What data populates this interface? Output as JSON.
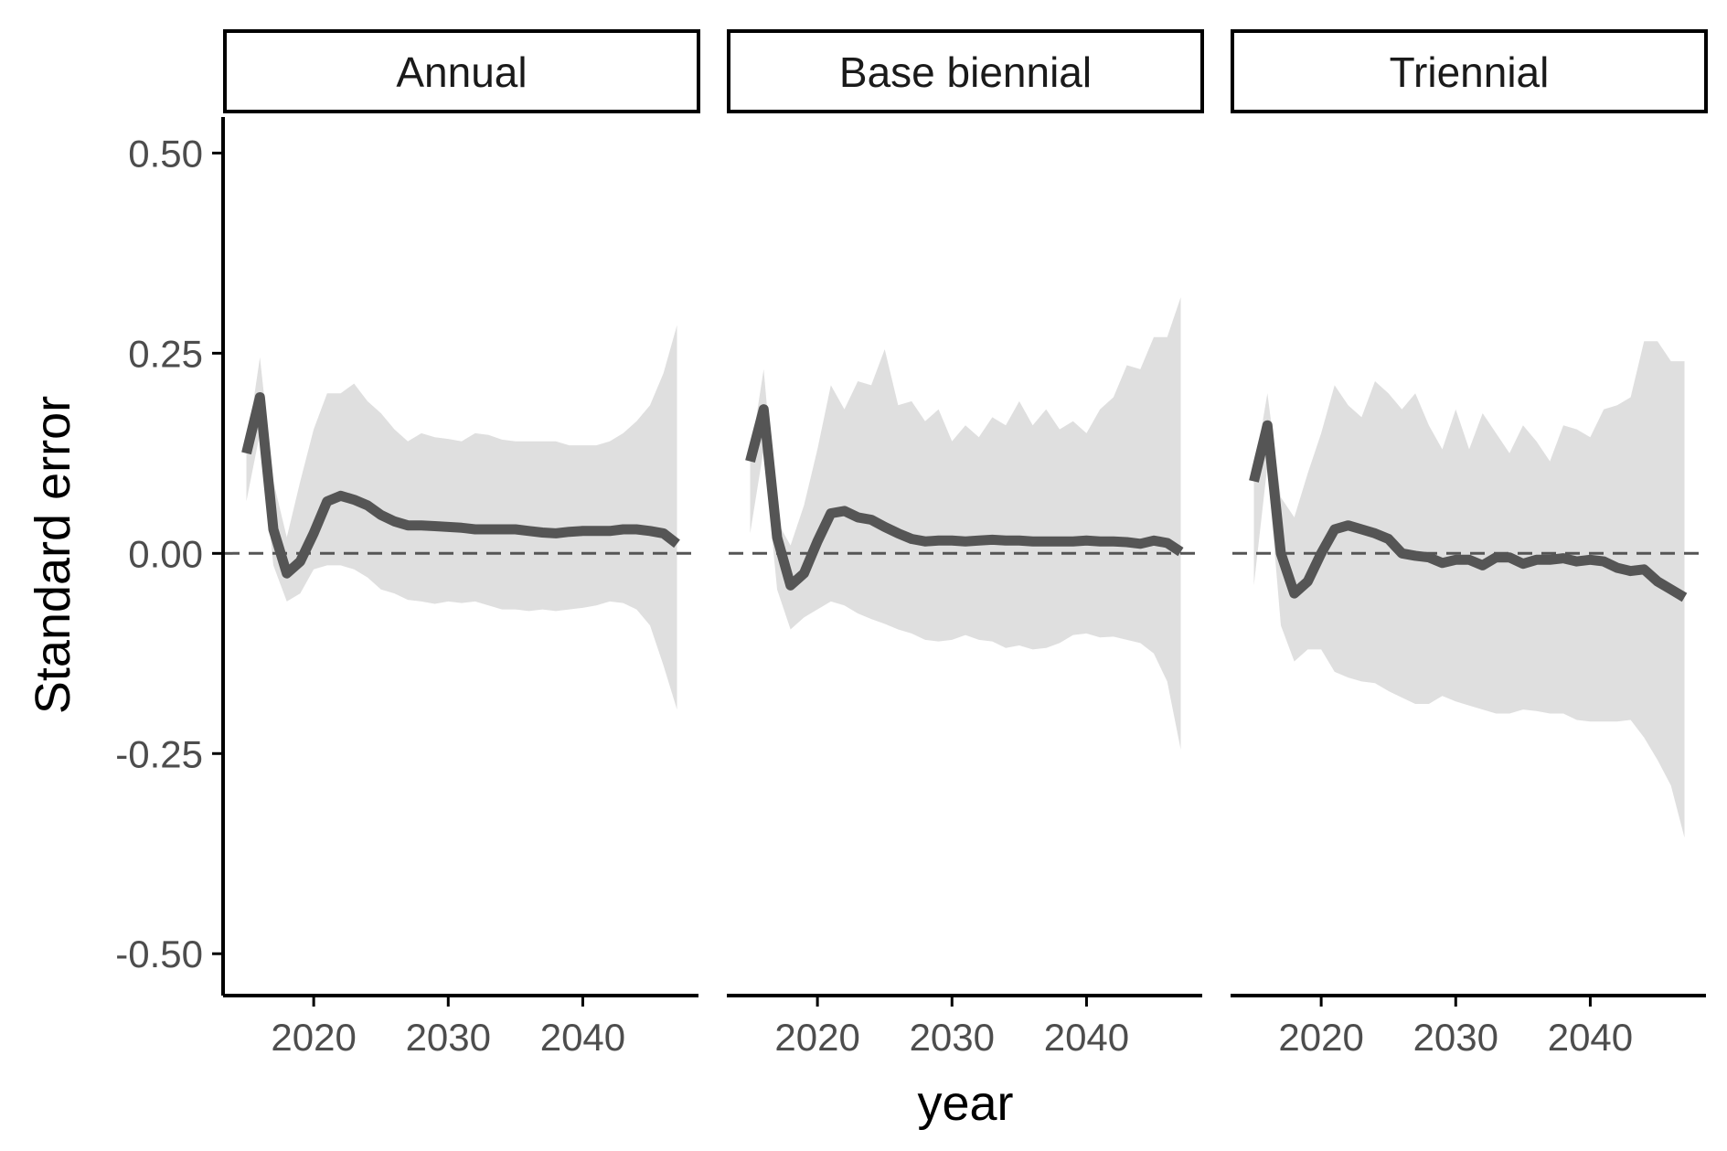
{
  "chart_data": {
    "type": "line",
    "xlabel": "year",
    "ylabel": "Standard error",
    "ylim": [
      -0.55,
      0.545
    ],
    "yticks": [
      -0.5,
      -0.25,
      0,
      0.25,
      0.5
    ],
    "ytick_labels": [
      "-0.50",
      "-0.25",
      "0.00",
      "0.25",
      "0.50"
    ],
    "xticks": [
      2020,
      2030,
      2040
    ],
    "xtick_labels": [
      "2020",
      "2030",
      "2040"
    ],
    "reference_line": 0,
    "colors": {
      "line": "#555555",
      "ribbon": "#dfdfdf",
      "reference": "#555555",
      "axis": "#000000"
    },
    "panels": [
      {
        "label": "Annual",
        "xlim": [
          2013.4,
          2048.6
        ],
        "x": [
          2015,
          2016,
          2017,
          2018,
          2019,
          2020,
          2021,
          2022,
          2023,
          2024,
          2025,
          2026,
          2027,
          2028,
          2029,
          2030,
          2031,
          2032,
          2033,
          2034,
          2035,
          2036,
          2037,
          2038,
          2039,
          2040,
          2041,
          2042,
          2043,
          2044,
          2045,
          2046,
          2047
        ],
        "mean": [
          0.125,
          0.195,
          0.03,
          -0.025,
          -0.01,
          0.025,
          0.065,
          0.072,
          0.067,
          0.06,
          0.048,
          0.04,
          0.035,
          0.035,
          0.034,
          0.033,
          0.032,
          0.03,
          0.03,
          0.03,
          0.03,
          0.028,
          0.026,
          0.025,
          0.027,
          0.028,
          0.028,
          0.028,
          0.03,
          0.03,
          0.028,
          0.025,
          0.012
        ],
        "upper": [
          0.13,
          0.245,
          0.09,
          0.02,
          0.09,
          0.155,
          0.2,
          0.2,
          0.212,
          0.19,
          0.175,
          0.155,
          0.14,
          0.15,
          0.145,
          0.143,
          0.14,
          0.15,
          0.148,
          0.142,
          0.14,
          0.14,
          0.14,
          0.14,
          0.135,
          0.135,
          0.135,
          0.14,
          0.15,
          0.165,
          0.185,
          0.225,
          0.285
        ],
        "lower": [
          0.065,
          0.15,
          -0.015,
          -0.06,
          -0.05,
          -0.02,
          -0.015,
          -0.015,
          -0.02,
          -0.03,
          -0.045,
          -0.05,
          -0.058,
          -0.06,
          -0.063,
          -0.06,
          -0.062,
          -0.06,
          -0.065,
          -0.07,
          -0.07,
          -0.072,
          -0.07,
          -0.072,
          -0.07,
          -0.068,
          -0.065,
          -0.06,
          -0.062,
          -0.07,
          -0.09,
          -0.14,
          -0.195
        ]
      },
      {
        "label": "Base biennial",
        "xlim": [
          2013.4,
          2048.6
        ],
        "x": [
          2015,
          2016,
          2017,
          2018,
          2019,
          2020,
          2021,
          2022,
          2023,
          2024,
          2025,
          2026,
          2027,
          2028,
          2029,
          2030,
          2031,
          2032,
          2033,
          2034,
          2035,
          2036,
          2037,
          2038,
          2039,
          2040,
          2041,
          2042,
          2043,
          2044,
          2045,
          2046,
          2047
        ],
        "mean": [
          0.115,
          0.18,
          0.02,
          -0.04,
          -0.025,
          0.015,
          0.05,
          0.053,
          0.045,
          0.042,
          0.033,
          0.025,
          0.018,
          0.015,
          0.016,
          0.016,
          0.015,
          0.016,
          0.017,
          0.016,
          0.016,
          0.015,
          0.015,
          0.015,
          0.015,
          0.016,
          0.015,
          0.015,
          0.014,
          0.012,
          0.016,
          0.013,
          0.002
        ],
        "upper": [
          0.12,
          0.23,
          0.04,
          0.01,
          0.06,
          0.13,
          0.21,
          0.18,
          0.215,
          0.21,
          0.255,
          0.185,
          0.19,
          0.165,
          0.18,
          0.14,
          0.16,
          0.145,
          0.17,
          0.16,
          0.19,
          0.16,
          0.18,
          0.155,
          0.165,
          0.15,
          0.18,
          0.195,
          0.235,
          0.23,
          0.27,
          0.27,
          0.32
        ],
        "lower": [
          0.025,
          0.13,
          -0.045,
          -0.095,
          -0.08,
          -0.07,
          -0.06,
          -0.065,
          -0.075,
          -0.082,
          -0.088,
          -0.095,
          -0.1,
          -0.108,
          -0.11,
          -0.108,
          -0.102,
          -0.108,
          -0.11,
          -0.118,
          -0.115,
          -0.12,
          -0.118,
          -0.112,
          -0.102,
          -0.1,
          -0.105,
          -0.104,
          -0.108,
          -0.112,
          -0.125,
          -0.16,
          -0.245
        ]
      },
      {
        "label": "Triennial",
        "xlim": [
          2013.4,
          2048.6
        ],
        "x": [
          2015,
          2016,
          2017,
          2018,
          2019,
          2020,
          2021,
          2022,
          2023,
          2024,
          2025,
          2026,
          2027,
          2028,
          2029,
          2030,
          2031,
          2032,
          2033,
          2034,
          2035,
          2036,
          2037,
          2038,
          2039,
          2040,
          2041,
          2042,
          2043,
          2044,
          2045,
          2046,
          2047
        ],
        "mean": [
          0.09,
          0.16,
          0.0,
          -0.05,
          -0.035,
          0.0,
          0.03,
          0.035,
          0.03,
          0.025,
          0.018,
          0.0,
          -0.003,
          -0.005,
          -0.012,
          -0.008,
          -0.008,
          -0.015,
          -0.005,
          -0.005,
          -0.013,
          -0.008,
          -0.008,
          -0.006,
          -0.01,
          -0.008,
          -0.01,
          -0.018,
          -0.022,
          -0.02,
          -0.035,
          -0.045,
          -0.055
        ],
        "upper": [
          0.1,
          0.2,
          0.07,
          0.045,
          0.1,
          0.15,
          0.21,
          0.185,
          0.17,
          0.215,
          0.2,
          0.18,
          0.2,
          0.16,
          0.13,
          0.18,
          0.13,
          0.175,
          0.15,
          0.125,
          0.16,
          0.14,
          0.115,
          0.16,
          0.155,
          0.145,
          0.18,
          0.185,
          0.195,
          0.265,
          0.265,
          0.24,
          0.24
        ],
        "lower": [
          -0.04,
          0.11,
          -0.09,
          -0.135,
          -0.12,
          -0.12,
          -0.148,
          -0.155,
          -0.16,
          -0.162,
          -0.172,
          -0.18,
          -0.188,
          -0.188,
          -0.178,
          -0.185,
          -0.19,
          -0.195,
          -0.2,
          -0.2,
          -0.195,
          -0.197,
          -0.2,
          -0.2,
          -0.208,
          -0.21,
          -0.21,
          -0.21,
          -0.208,
          -0.23,
          -0.258,
          -0.29,
          -0.355
        ]
      }
    ]
  }
}
